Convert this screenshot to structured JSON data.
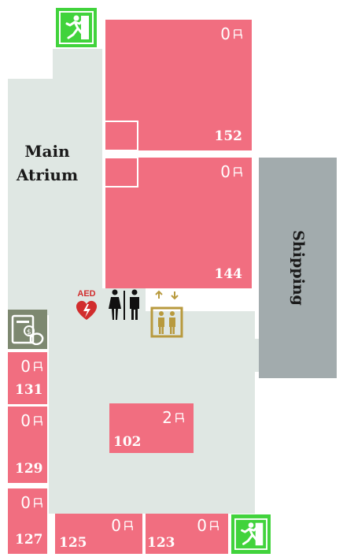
{
  "colors": {
    "room": "#f16e80",
    "corridor": "#dfe7e3",
    "shipping": "#a2abad",
    "exit": "#41d33c",
    "elevator": "#b89a3e",
    "atm": "#7d8870"
  },
  "icons": [
    "emergency-exit-icon",
    "aed-icon",
    "restroom-icon",
    "elevator-icon",
    "atm-icon",
    "seat-icon"
  ],
  "labels": {
    "main_atrium_line1": "Main",
    "main_atrium_line2": "Atrium",
    "shipping": "Shipping",
    "aed": "AED"
  },
  "rooms": [
    {
      "id": "152",
      "number": "152",
      "available": "0"
    },
    {
      "id": "144",
      "number": "144",
      "available": "0"
    },
    {
      "id": "131",
      "number": "131",
      "available": "0"
    },
    {
      "id": "129",
      "number": "129",
      "available": "0"
    },
    {
      "id": "127",
      "number": "127",
      "available": "0"
    },
    {
      "id": "125",
      "number": "125",
      "available": "0"
    },
    {
      "id": "123",
      "number": "123",
      "available": "0"
    },
    {
      "id": "102",
      "number": "102",
      "available": "2"
    }
  ]
}
